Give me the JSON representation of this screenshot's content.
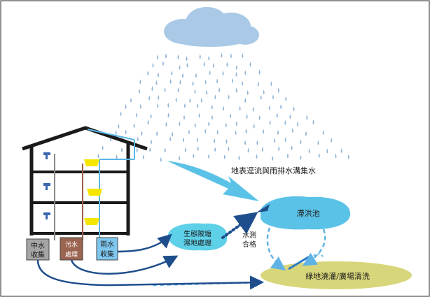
{
  "labels": {
    "runoff": "地表逕流與雨排水溝集水",
    "detention_pond": "滯洪池",
    "eco_pond_line1": "生態陂塘",
    "eco_pond_line2": "濕地處理",
    "water_test_line1": "水測",
    "water_test_line2": "合格",
    "greywater_line1": "中水",
    "greywater_line2": "收集",
    "sewage_line1": "污水",
    "sewage_line2": "處理",
    "rainwater_line1": "雨水",
    "rainwater_line2": "收集",
    "green_area": "綠地澆灌/廣場清洗"
  },
  "colors": {
    "cloud": "#a9c9e6",
    "rain": "#8fb4d8",
    "water_blue": "#5bc2e7",
    "pond_cyan": "#5ed0e8",
    "green_oval": "#d8d67a",
    "dark_arrow": "#1f4e8c",
    "dashed_blue": "#5fb3e6",
    "greywater_box": "#a5a5a5",
    "sewage_box": "#9a6450",
    "rainwater_box": "#7ec7ee",
    "building": "#1a1a1a",
    "fixture_yellow": "#f5e600"
  }
}
